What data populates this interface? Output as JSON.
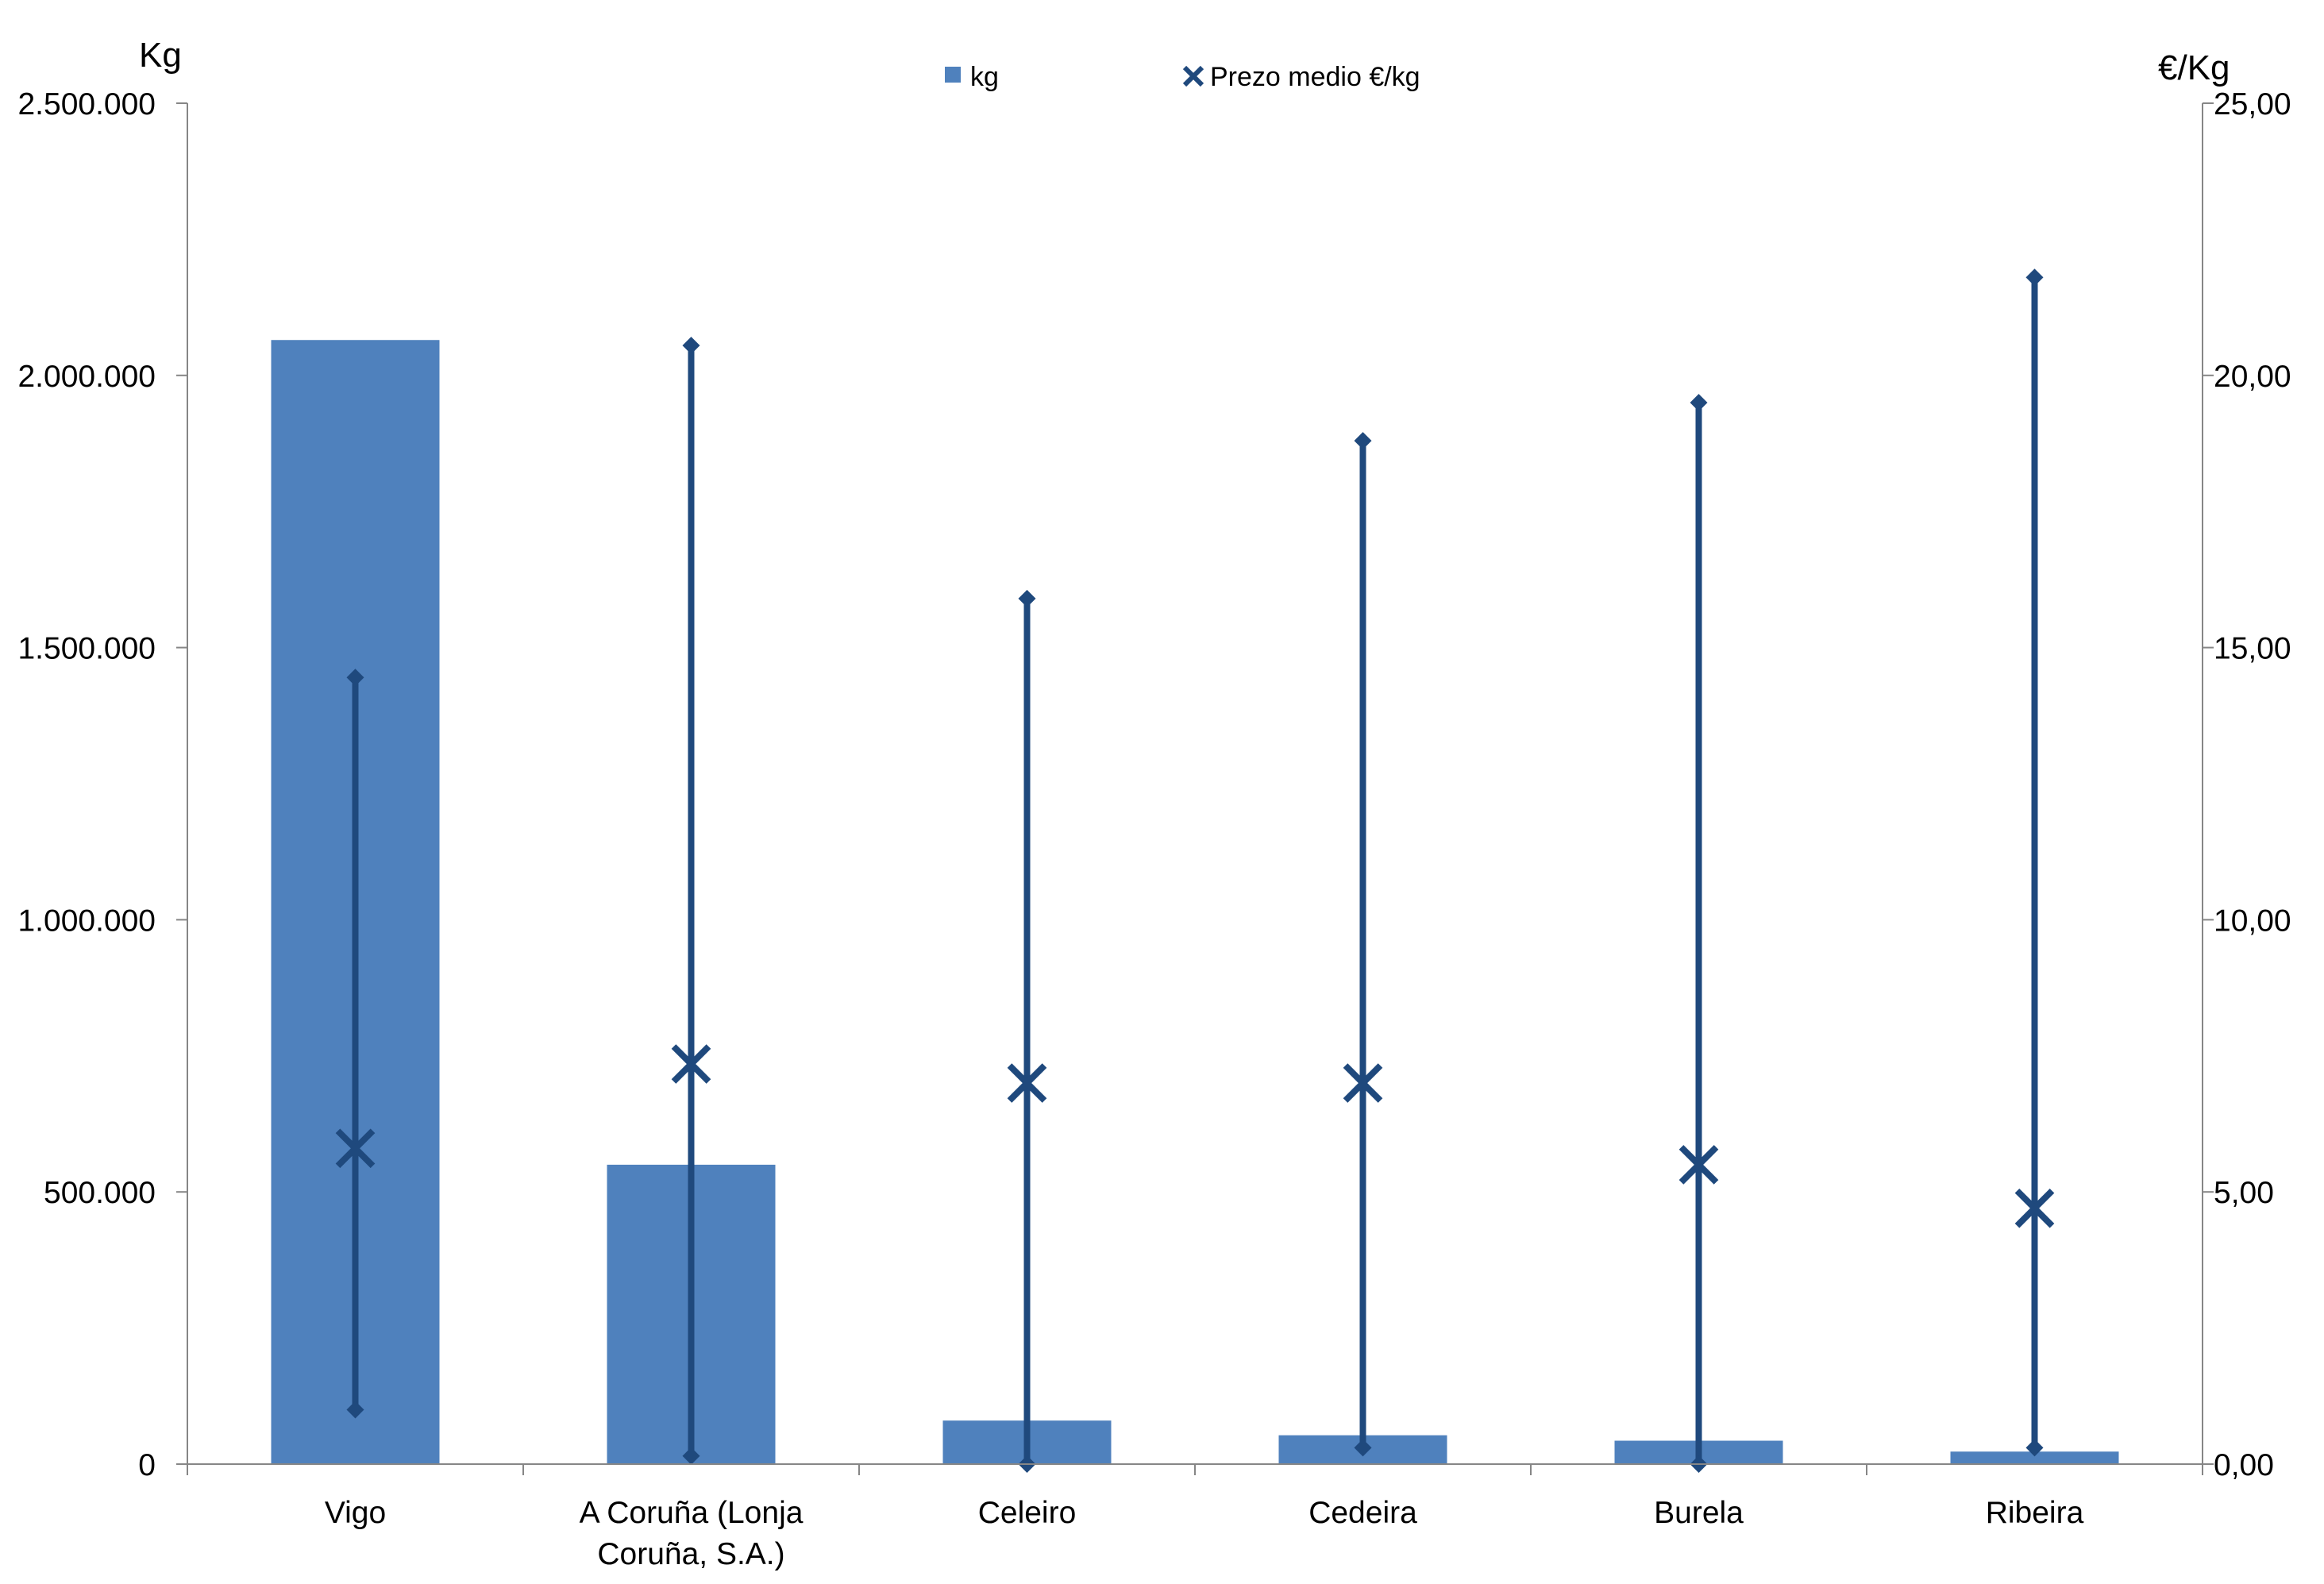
{
  "chart_data": {
    "type": "bar",
    "title": "",
    "categories": [
      "Vigo",
      "A Coruña (Lonja Coruña, S.A.)",
      "Celeiro",
      "Cedeira",
      "Burela",
      "Ribeira"
    ],
    "category_label_lines": [
      [
        "Vigo"
      ],
      [
        "A Coruña (Lonja",
        "Coruña, S.A.)"
      ],
      [
        "Celeiro"
      ],
      [
        "Cedeira"
      ],
      [
        "Burela"
      ],
      [
        "Ribeira"
      ]
    ],
    "bar_series": {
      "name": "kg",
      "color": "#4F81BD",
      "values": [
        2065000,
        550000,
        80000,
        53000,
        43000,
        23000
      ]
    },
    "price_series": {
      "name": "Prezo medio €/kg",
      "color": "#1F497D",
      "marker": "x",
      "mean": [
        5.8,
        7.35,
        7.0,
        7.0,
        5.5,
        4.7
      ],
      "max": [
        14.45,
        20.55,
        15.9,
        18.8,
        19.5,
        21.8
      ],
      "min": [
        1.0,
        0.15,
        0.0,
        0.3,
        0.0,
        0.3
      ]
    },
    "left_axis": {
      "unit_label": "Kg",
      "min": 0,
      "max": 2500000,
      "ticks": [
        0,
        500000,
        1000000,
        1500000,
        2000000,
        2500000
      ],
      "tick_labels": [
        "0",
        "500.000",
        "1.000.000",
        "1.500.000",
        "2.000.000",
        "2.500.000"
      ]
    },
    "right_axis": {
      "unit_label": "€/Kg",
      "min": 0,
      "max": 25,
      "ticks": [
        0,
        5,
        10,
        15,
        20,
        25
      ],
      "tick_labels": [
        "0,00",
        "5,00",
        "10,00",
        "15,00",
        "20,00",
        "25,00"
      ]
    },
    "legend": {
      "position": "top-center",
      "entries": [
        "kg",
        "Prezo medio €/kg"
      ]
    },
    "grid": false,
    "axis_color": "#868686"
  }
}
